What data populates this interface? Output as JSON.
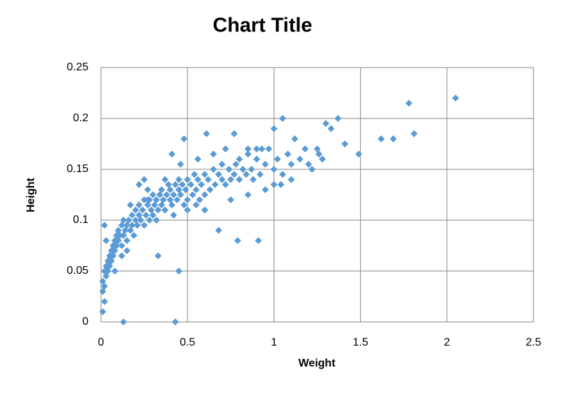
{
  "chart_data": {
    "type": "scatter",
    "title": "Chart Title",
    "x_label": "Weight",
    "y_label": "Height",
    "xlim": [
      0,
      2.5
    ],
    "ylim": [
      0,
      0.25
    ],
    "xticks": [
      0,
      0.5,
      1,
      1.5,
      2,
      2.5
    ],
    "yticks": [
      0,
      0.05,
      0.1,
      0.15,
      0.2,
      0.25
    ],
    "grid": true,
    "series": [
      {
        "color": "#5b9bd5",
        "x": [
          0.01,
          0.01,
          0.02,
          0.02,
          0.03,
          0.03,
          0.04,
          0.04,
          0.05,
          0.05,
          0.06,
          0.06,
          0.07,
          0.07,
          0.08,
          0.08,
          0.09,
          0.09,
          0.1,
          0.1,
          0.11,
          0.12,
          0.12,
          0.13,
          0.13,
          0.14,
          0.15,
          0.15,
          0.16,
          0.17,
          0.18,
          0.18,
          0.19,
          0.2,
          0.2,
          0.21,
          0.22,
          0.22,
          0.23,
          0.24,
          0.25,
          0.25,
          0.26,
          0.27,
          0.28,
          0.28,
          0.29,
          0.3,
          0.3,
          0.31,
          0.32,
          0.33,
          0.34,
          0.35,
          0.35,
          0.36,
          0.37,
          0.38,
          0.39,
          0.4,
          0.4,
          0.41,
          0.42,
          0.43,
          0.44,
          0.45,
          0.45,
          0.46,
          0.47,
          0.48,
          0.49,
          0.5,
          0.5,
          0.52,
          0.53,
          0.54,
          0.55,
          0.56,
          0.57,
          0.58,
          0.6,
          0.6,
          0.62,
          0.63,
          0.65,
          0.66,
          0.68,
          0.7,
          0.7,
          0.72,
          0.74,
          0.75,
          0.77,
          0.78,
          0.8,
          0.8,
          0.82,
          0.84,
          0.85,
          0.87,
          0.88,
          0.9,
          0.92,
          0.95,
          0.97,
          1.0,
          1.02,
          1.05,
          1.08,
          1.1,
          1.15,
          1.18,
          1.22,
          1.26,
          1.28,
          0.9,
          0.85,
          0.93,
          0.65,
          0.72,
          0.56,
          0.46,
          0.37,
          0.27,
          0.22,
          0.17,
          0.12,
          0.15,
          0.08,
          0.5,
          0.55,
          0.6,
          0.75,
          0.85,
          1.0,
          1.1,
          0.32,
          0.42,
          0.95,
          0.13,
          0.43,
          2.05,
          1.78,
          1.81,
          1.62,
          1.69,
          1.49,
          1.37,
          1.3,
          1.41,
          1.33,
          0.61,
          0.77,
          0.48,
          0.41,
          0.02,
          0.03,
          0.33,
          0.45,
          0.68,
          0.79,
          0.91,
          1.04,
          0.01,
          0.02,
          0.25,
          0.27,
          1.12,
          1.05,
          1.0,
          1.2,
          1.25
        ],
        "y": [
          0.03,
          0.04,
          0.035,
          0.05,
          0.045,
          0.055,
          0.06,
          0.05,
          0.065,
          0.055,
          0.07,
          0.06,
          0.075,
          0.065,
          0.08,
          0.07,
          0.085,
          0.075,
          0.09,
          0.08,
          0.085,
          0.095,
          0.075,
          0.1,
          0.085,
          0.09,
          0.095,
          0.08,
          0.1,
          0.09,
          0.105,
          0.095,
          0.085,
          0.1,
          0.11,
          0.095,
          0.105,
          0.115,
          0.1,
          0.11,
          0.12,
          0.095,
          0.105,
          0.115,
          0.1,
          0.12,
          0.11,
          0.125,
          0.105,
          0.115,
          0.12,
          0.11,
          0.125,
          0.115,
          0.13,
          0.12,
          0.11,
          0.125,
          0.135,
          0.12,
          0.13,
          0.115,
          0.125,
          0.135,
          0.12,
          0.13,
          0.14,
          0.125,
          0.135,
          0.115,
          0.13,
          0.14,
          0.12,
          0.135,
          0.125,
          0.145,
          0.13,
          0.14,
          0.12,
          0.135,
          0.145,
          0.125,
          0.14,
          0.13,
          0.15,
          0.135,
          0.145,
          0.14,
          0.155,
          0.135,
          0.15,
          0.14,
          0.145,
          0.155,
          0.14,
          0.16,
          0.15,
          0.145,
          0.165,
          0.15,
          0.14,
          0.16,
          0.145,
          0.155,
          0.17,
          0.15,
          0.16,
          0.145,
          0.165,
          0.155,
          0.16,
          0.17,
          0.15,
          0.165,
          0.16,
          0.17,
          0.17,
          0.17,
          0.165,
          0.17,
          0.16,
          0.155,
          0.14,
          0.13,
          0.135,
          0.115,
          0.065,
          0.07,
          0.05,
          0.11,
          0.115,
          0.11,
          0.12,
          0.125,
          0.135,
          0.14,
          0.1,
          0.105,
          0.13,
          0,
          0,
          0.22,
          0.215,
          0.185,
          0.18,
          0.18,
          0.165,
          0.2,
          0.195,
          0.175,
          0.19,
          0.185,
          0.185,
          0.18,
          0.165,
          0.095,
          0.08,
          0.065,
          0.05,
          0.09,
          0.08,
          0.08,
          0.135,
          0.01,
          0.02,
          0.14,
          0.12,
          0.18,
          0.2,
          0.19,
          0.155,
          0.17
        ]
      }
    ]
  }
}
